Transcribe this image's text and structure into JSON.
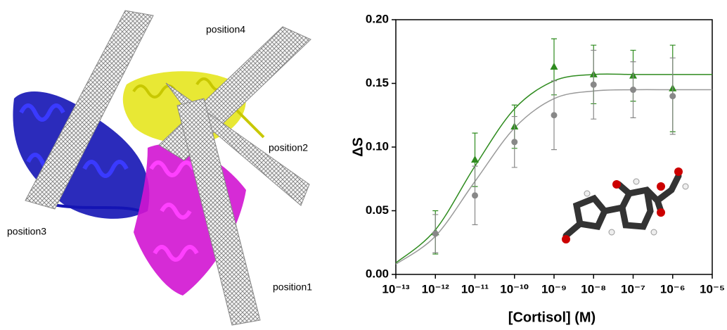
{
  "image_labels": [
    "position4",
    "position2",
    "position3",
    "position1"
  ],
  "chart_data": {
    "type": "scatter",
    "x_label": "[Cortisol] (M)",
    "y_label": "ΔS",
    "xscale": "log",
    "xlim": [
      1e-13,
      1e-05
    ],
    "xticks": [
      {
        "value": 1e-13,
        "label": "10⁻¹³"
      },
      {
        "value": 1e-12,
        "label": "10⁻¹²"
      },
      {
        "value": 1e-11,
        "label": "10⁻¹¹"
      },
      {
        "value": 1e-10,
        "label": "10⁻¹⁰"
      },
      {
        "value": 1e-09,
        "label": "10⁻⁹"
      },
      {
        "value": 1e-08,
        "label": "10⁻⁸"
      },
      {
        "value": 1e-07,
        "label": "10⁻⁷"
      },
      {
        "value": 1e-06,
        "label": "10⁻⁶"
      },
      {
        "value": 1e-05,
        "label": "10⁻⁵"
      }
    ],
    "ylim": [
      0,
      0.2
    ],
    "yticks": [
      {
        "value": 0,
        "label": "0.00"
      },
      0.05,
      {
        "value": 0.1,
        "label": "0.10"
      },
      0.15,
      {
        "value": 0.2,
        "label": "0.20"
      }
    ],
    "series": [
      {
        "color": "#2e8b1e",
        "marker": "triangle",
        "x": [
          1e-12,
          1e-11,
          1e-10,
          1e-09,
          1e-08,
          1e-07,
          1e-06
        ],
        "values": [
          0.033,
          0.09,
          0.116,
          0.163,
          0.157,
          0.156,
          0.146
        ],
        "errors": [
          0.017,
          0.021,
          0.017,
          0.022,
          0.023,
          0.02,
          0.034
        ]
      },
      {
        "color": "#888888",
        "marker": "circle",
        "x": [
          1e-12,
          1e-11,
          1e-10,
          1e-09,
          1e-08,
          1e-07,
          1e-06
        ],
        "values": [
          0.032,
          0.062,
          0.104,
          0.125,
          0.149,
          0.145,
          0.14
        ],
        "errors": [
          0.015,
          0.023,
          0.02,
          0.027,
          0.027,
          0.022,
          0.03
        ]
      }
    ],
    "fit_lines": [
      {
        "color": "#2e8b1e",
        "x": [
          1e-13,
          1e-12,
          1e-11,
          1e-10,
          1e-09,
          1e-08,
          1e-07,
          1e-06,
          1e-05
        ],
        "values": [
          0.009,
          0.035,
          0.085,
          0.13,
          0.152,
          0.157,
          0.157,
          0.157,
          0.157
        ]
      },
      {
        "color": "#999999",
        "x": [
          1e-13,
          1e-12,
          1e-11,
          1e-10,
          1e-09,
          1e-08,
          1e-07,
          1e-06,
          1e-05
        ],
        "values": [
          0.008,
          0.03,
          0.073,
          0.115,
          0.138,
          0.144,
          0.145,
          0.145,
          0.145
        ]
      }
    ]
  }
}
